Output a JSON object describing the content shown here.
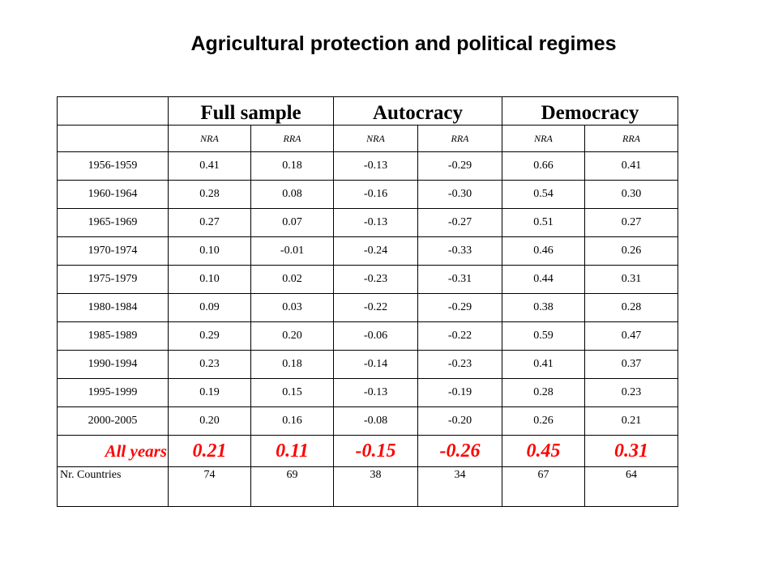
{
  "title": "Agricultural protection and political regimes",
  "table": {
    "groups": [
      "Full sample",
      "Autocracy",
      "Democracy"
    ],
    "metrics": [
      "NRA",
      "RRA",
      "NRA",
      "RRA",
      "NRA",
      "RRA"
    ],
    "rows": [
      {
        "period": "1956-1959",
        "values": [
          "0.41",
          "0.18",
          "-0.13",
          "-0.29",
          "0.66",
          "0.41"
        ]
      },
      {
        "period": "1960-1964",
        "values": [
          "0.28",
          "0.08",
          "-0.16",
          "-0.30",
          "0.54",
          "0.30"
        ]
      },
      {
        "period": "1965-1969",
        "values": [
          "0.27",
          "0.07",
          "-0.13",
          "-0.27",
          "0.51",
          "0.27"
        ]
      },
      {
        "period": "1970-1974",
        "values": [
          "0.10",
          "-0.01",
          "-0.24",
          "-0.33",
          "0.46",
          "0.26"
        ]
      },
      {
        "period": "1975-1979",
        "values": [
          "0.10",
          "0.02",
          "-0.23",
          "-0.31",
          "0.44",
          "0.31"
        ]
      },
      {
        "period": "1980-1984",
        "values": [
          "0.09",
          "0.03",
          "-0.22",
          "-0.29",
          "0.38",
          "0.28"
        ]
      },
      {
        "period": "1985-1989",
        "values": [
          "0.29",
          "0.20",
          "-0.06",
          "-0.22",
          "0.59",
          "0.47"
        ]
      },
      {
        "period": "1990-1994",
        "values": [
          "0.23",
          "0.18",
          "-0.14",
          "-0.23",
          "0.41",
          "0.37"
        ]
      },
      {
        "period": "1995-1999",
        "values": [
          "0.19",
          "0.15",
          "-0.13",
          "-0.19",
          "0.28",
          "0.23"
        ]
      },
      {
        "period": "2000-2005",
        "values": [
          "0.20",
          "0.16",
          "-0.08",
          "-0.20",
          "0.26",
          "0.21"
        ]
      }
    ],
    "all_years": {
      "label": "All years",
      "values": [
        "0.21",
        "0.11",
        "-0.15",
        "-0.26",
        "0.45",
        "0.31"
      ]
    },
    "countries": {
      "label": "Nr. Countries",
      "values": [
        "74",
        "69",
        "38",
        "34",
        "67",
        "64"
      ]
    }
  },
  "colors": {
    "highlight": "#ff0000",
    "text": "#000000",
    "border": "#000000"
  }
}
